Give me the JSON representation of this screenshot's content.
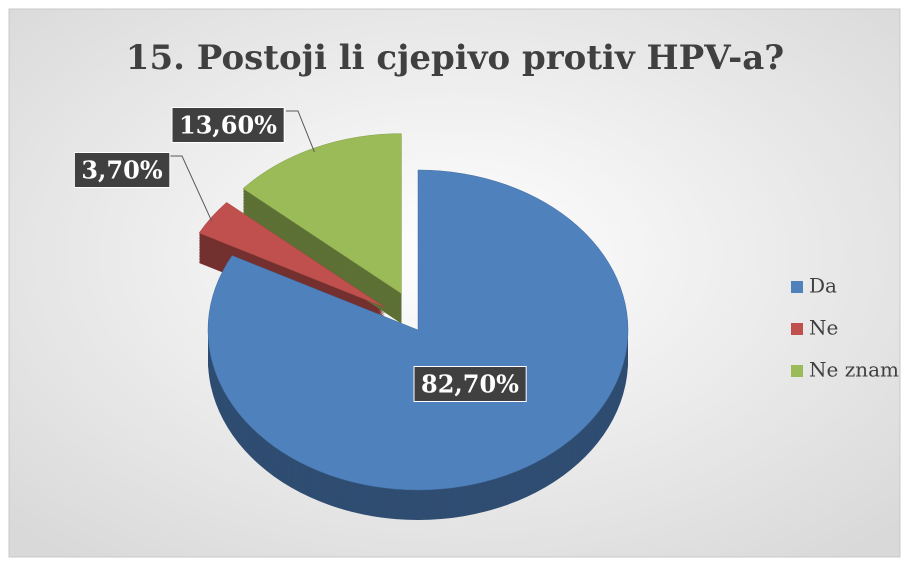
{
  "chart_data": {
    "type": "pie",
    "title": "15. Postoji li cjepivo protiv HPV-a?",
    "categories": [
      "Da",
      "Ne",
      "Ne znam"
    ],
    "values": [
      82.7,
      3.7,
      13.6
    ],
    "value_labels": [
      "82,70%",
      "3,70%",
      "13,60%"
    ],
    "colors": [
      "#4f81bd",
      "#c0504d",
      "#9bbb59"
    ],
    "legend": "right"
  }
}
